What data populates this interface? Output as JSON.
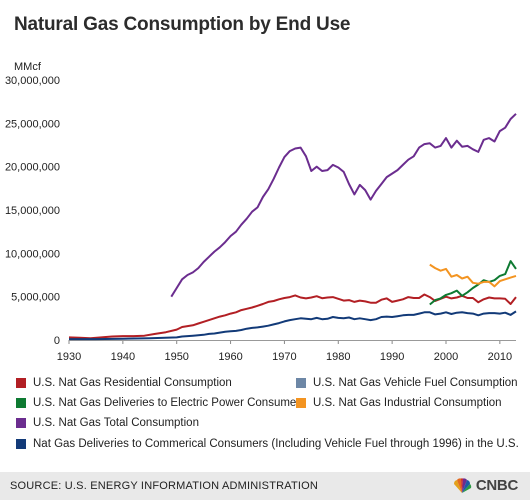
{
  "header": {
    "title": "Natural Gas Consumption by End Use",
    "unit": "MMcf"
  },
  "footer": {
    "source": "SOURCE: U.S. ENERGY INFORMATION ADMINISTRATION",
    "logo": "CNBC"
  },
  "chart_data": {
    "type": "line",
    "title": "Natural Gas Consumption by End Use",
    "ylabel": "MMcf",
    "xlabel": "",
    "xlim": [
      1930,
      2013
    ],
    "ylim": [
      0,
      30000000
    ],
    "grid": false,
    "legend_position": "bottom",
    "x_ticks": [
      1930,
      1940,
      1950,
      1960,
      1970,
      1980,
      1990,
      2000,
      2010
    ],
    "x_tick_labels": [
      "1930",
      "1940",
      "1950",
      "1960",
      "1970",
      "1980",
      "1990",
      "2000",
      "2010"
    ],
    "y_ticks": [
      0,
      5000000,
      10000000,
      15000000,
      20000000,
      25000000,
      30000000
    ],
    "y_tick_labels": [
      "0",
      "5,000,000",
      "10,000,000",
      "15,000,000",
      "20,000,000",
      "25,000,000",
      "30,000,000"
    ],
    "series": [
      {
        "name": "U.S. Nat Gas Residential Consumption",
        "color": "#b21f24",
        "x": [
          1930,
          1932,
          1934,
          1936,
          1938,
          1940,
          1942,
          1944,
          1946,
          1948,
          1950,
          1951,
          1952,
          1953,
          1954,
          1955,
          1956,
          1957,
          1958,
          1959,
          1960,
          1961,
          1962,
          1963,
          1964,
          1965,
          1966,
          1967,
          1968,
          1969,
          1970,
          1971,
          1972,
          1973,
          1974,
          1975,
          1976,
          1977,
          1978,
          1979,
          1980,
          1981,
          1982,
          1983,
          1984,
          1985,
          1986,
          1987,
          1988,
          1989,
          1990,
          1991,
          1992,
          1993,
          1994,
          1995,
          1996,
          1997,
          1998,
          1999,
          2000,
          2001,
          2002,
          2003,
          2004,
          2005,
          2006,
          2007,
          2008,
          2009,
          2010,
          2011,
          2012,
          2013
        ],
        "y": [
          300000,
          250000,
          200000,
          300000,
          400000,
          450000,
          450000,
          500000,
          700000,
          900000,
          1200000,
          1500000,
          1600000,
          1700000,
          1900000,
          2100000,
          2300000,
          2500000,
          2700000,
          2850000,
          3050000,
          3200000,
          3450000,
          3600000,
          3750000,
          3950000,
          4150000,
          4400000,
          4500000,
          4700000,
          4850000,
          4950000,
          5150000,
          4900000,
          4800000,
          4900000,
          5050000,
          4820000,
          4900000,
          4950000,
          4750000,
          4550000,
          4600000,
          4400000,
          4550000,
          4450000,
          4300000,
          4300000,
          4650000,
          4800000,
          4400000,
          4550000,
          4700000,
          4950000,
          4850000,
          4850000,
          5250000,
          4950000,
          4500000,
          4750000,
          5000000,
          4800000,
          4900000,
          5100000,
          4850000,
          4850000,
          4350000,
          4700000,
          4900000,
          4800000,
          4800000,
          4750000,
          4150000,
          4950000
        ]
      },
      {
        "name": "U.S. Nat Gas Vehicle Fuel Consumption",
        "color": "#6d87a6",
        "x": [],
        "y": []
      },
      {
        "name": "U.S. Nat Gas Deliveries to Electric Power Consumers",
        "color": "#0e7a32",
        "x": [
          1997,
          1998,
          1999,
          2000,
          2001,
          2002,
          2003,
          2004,
          2005,
          2006,
          2007,
          2008,
          2009,
          2010,
          2011,
          2012,
          2013
        ],
        "y": [
          4100000,
          4600000,
          4800000,
          5200000,
          5400000,
          5700000,
          5100000,
          5500000,
          6000000,
          6400000,
          6900000,
          6700000,
          6900000,
          7400000,
          7600000,
          9100000,
          8200000
        ]
      },
      {
        "name": "U.S. Nat Gas Industrial Consumption",
        "color": "#f39421",
        "x": [
          1997,
          1998,
          1999,
          2000,
          2001,
          2002,
          2003,
          2004,
          2005,
          2006,
          2007,
          2008,
          2009,
          2010,
          2011,
          2012,
          2013
        ],
        "y": [
          8700000,
          8300000,
          8000000,
          8200000,
          7300000,
          7500000,
          7100000,
          7300000,
          6600000,
          6500000,
          6700000,
          6700000,
          6200000,
          6800000,
          7000000,
          7200000,
          7400000
        ]
      },
      {
        "name": "U.S. Nat Gas Total Consumption",
        "color": "#6b2d8f",
        "x": [
          1949,
          1950,
          1951,
          1952,
          1953,
          1954,
          1955,
          1956,
          1957,
          1958,
          1959,
          1960,
          1961,
          1962,
          1963,
          1964,
          1965,
          1966,
          1967,
          1968,
          1969,
          1970,
          1971,
          1972,
          1973,
          1974,
          1975,
          1976,
          1977,
          1978,
          1979,
          1980,
          1981,
          1982,
          1983,
          1984,
          1985,
          1986,
          1987,
          1988,
          1989,
          1990,
          1991,
          1992,
          1993,
          1994,
          1995,
          1996,
          1997,
          1998,
          1999,
          2000,
          2001,
          2002,
          2003,
          2004,
          2005,
          2006,
          2007,
          2008,
          2009,
          2010,
          2011,
          2012,
          2013
        ],
        "y": [
          5000000,
          6000000,
          7000000,
          7500000,
          7800000,
          8300000,
          9000000,
          9600000,
          10200000,
          10700000,
          11300000,
          12000000,
          12500000,
          13300000,
          14000000,
          14800000,
          15300000,
          16500000,
          17400000,
          18600000,
          19900000,
          21100000,
          21800000,
          22100000,
          22200000,
          21200000,
          19500000,
          20000000,
          19500000,
          19600000,
          20200000,
          19900000,
          19400000,
          18000000,
          16800000,
          17900000,
          17300000,
          16200000,
          17200000,
          18000000,
          18800000,
          19200000,
          19600000,
          20200000,
          20800000,
          21200000,
          22200000,
          22600000,
          22700000,
          22200000,
          22400000,
          23300000,
          22200000,
          23000000,
          22300000,
          22400000,
          22000000,
          21700000,
          23100000,
          23300000,
          22900000,
          24100000,
          24500000,
          25500000,
          26100000
        ]
      },
      {
        "name": "Nat Gas Deliveries to Commerical Consumers (Including Vehicle Fuel through 1996) in the U.S.",
        "color": "#123a78",
        "x": [
          1930,
          1935,
          1940,
          1945,
          1950,
          1951,
          1952,
          1953,
          1954,
          1955,
          1956,
          1957,
          1958,
          1959,
          1960,
          1961,
          1962,
          1963,
          1964,
          1965,
          1966,
          1967,
          1968,
          1969,
          1970,
          1971,
          1972,
          1973,
          1974,
          1975,
          1976,
          1977,
          1978,
          1979,
          1980,
          1981,
          1982,
          1983,
          1984,
          1985,
          1986,
          1987,
          1988,
          1989,
          1990,
          1991,
          1992,
          1993,
          1994,
          1995,
          1996,
          1997,
          1998,
          1999,
          2000,
          2001,
          2002,
          2003,
          2004,
          2005,
          2006,
          2007,
          2008,
          2009,
          2010,
          2011,
          2012,
          2013
        ],
        "y": [
          100000,
          100000,
          150000,
          200000,
          300000,
          400000,
          450000,
          500000,
          550000,
          600000,
          700000,
          750000,
          850000,
          950000,
          1000000,
          1050000,
          1150000,
          1300000,
          1400000,
          1450000,
          1550000,
          1650000,
          1800000,
          1950000,
          2150000,
          2300000,
          2400000,
          2500000,
          2450000,
          2400000,
          2550000,
          2400000,
          2450000,
          2650000,
          2550000,
          2500000,
          2600000,
          2400000,
          2500000,
          2400000,
          2300000,
          2400000,
          2650000,
          2700000,
          2650000,
          2750000,
          2850000,
          2900000,
          2900000,
          3050000,
          3200000,
          3200000,
          2950000,
          3050000,
          3200000,
          3000000,
          3150000,
          3200000,
          3100000,
          3050000,
          2850000,
          3050000,
          3100000,
          3100000,
          3050000,
          3150000,
          2900000,
          3300000
        ]
      }
    ]
  }
}
